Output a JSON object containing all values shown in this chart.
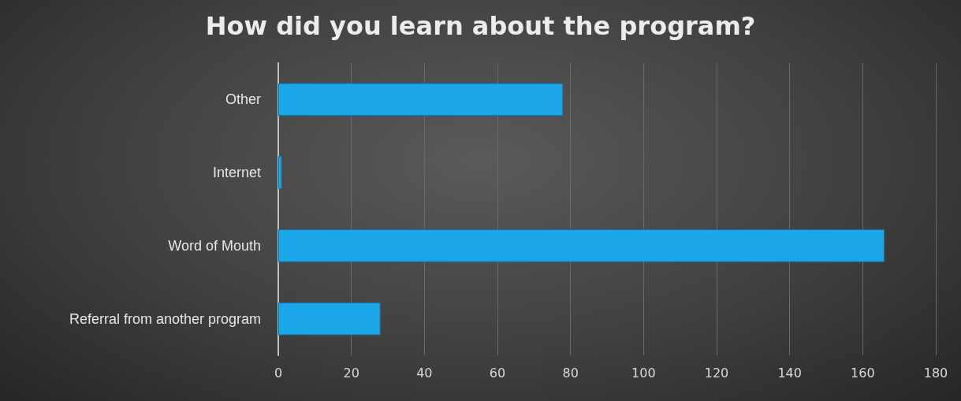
{
  "chart_data": {
    "type": "bar",
    "orientation": "horizontal",
    "title": "How did you learn about the program?",
    "categories": [
      "Other",
      "Internet",
      "Word of Mouth",
      "Referral from another program"
    ],
    "values": [
      78,
      1,
      166,
      28
    ],
    "color": "#1ba6e8",
    "xlim": [
      0,
      180
    ],
    "xticks": [
      0,
      20,
      40,
      60,
      80,
      100,
      120,
      140,
      160,
      180
    ],
    "grid": "x"
  }
}
